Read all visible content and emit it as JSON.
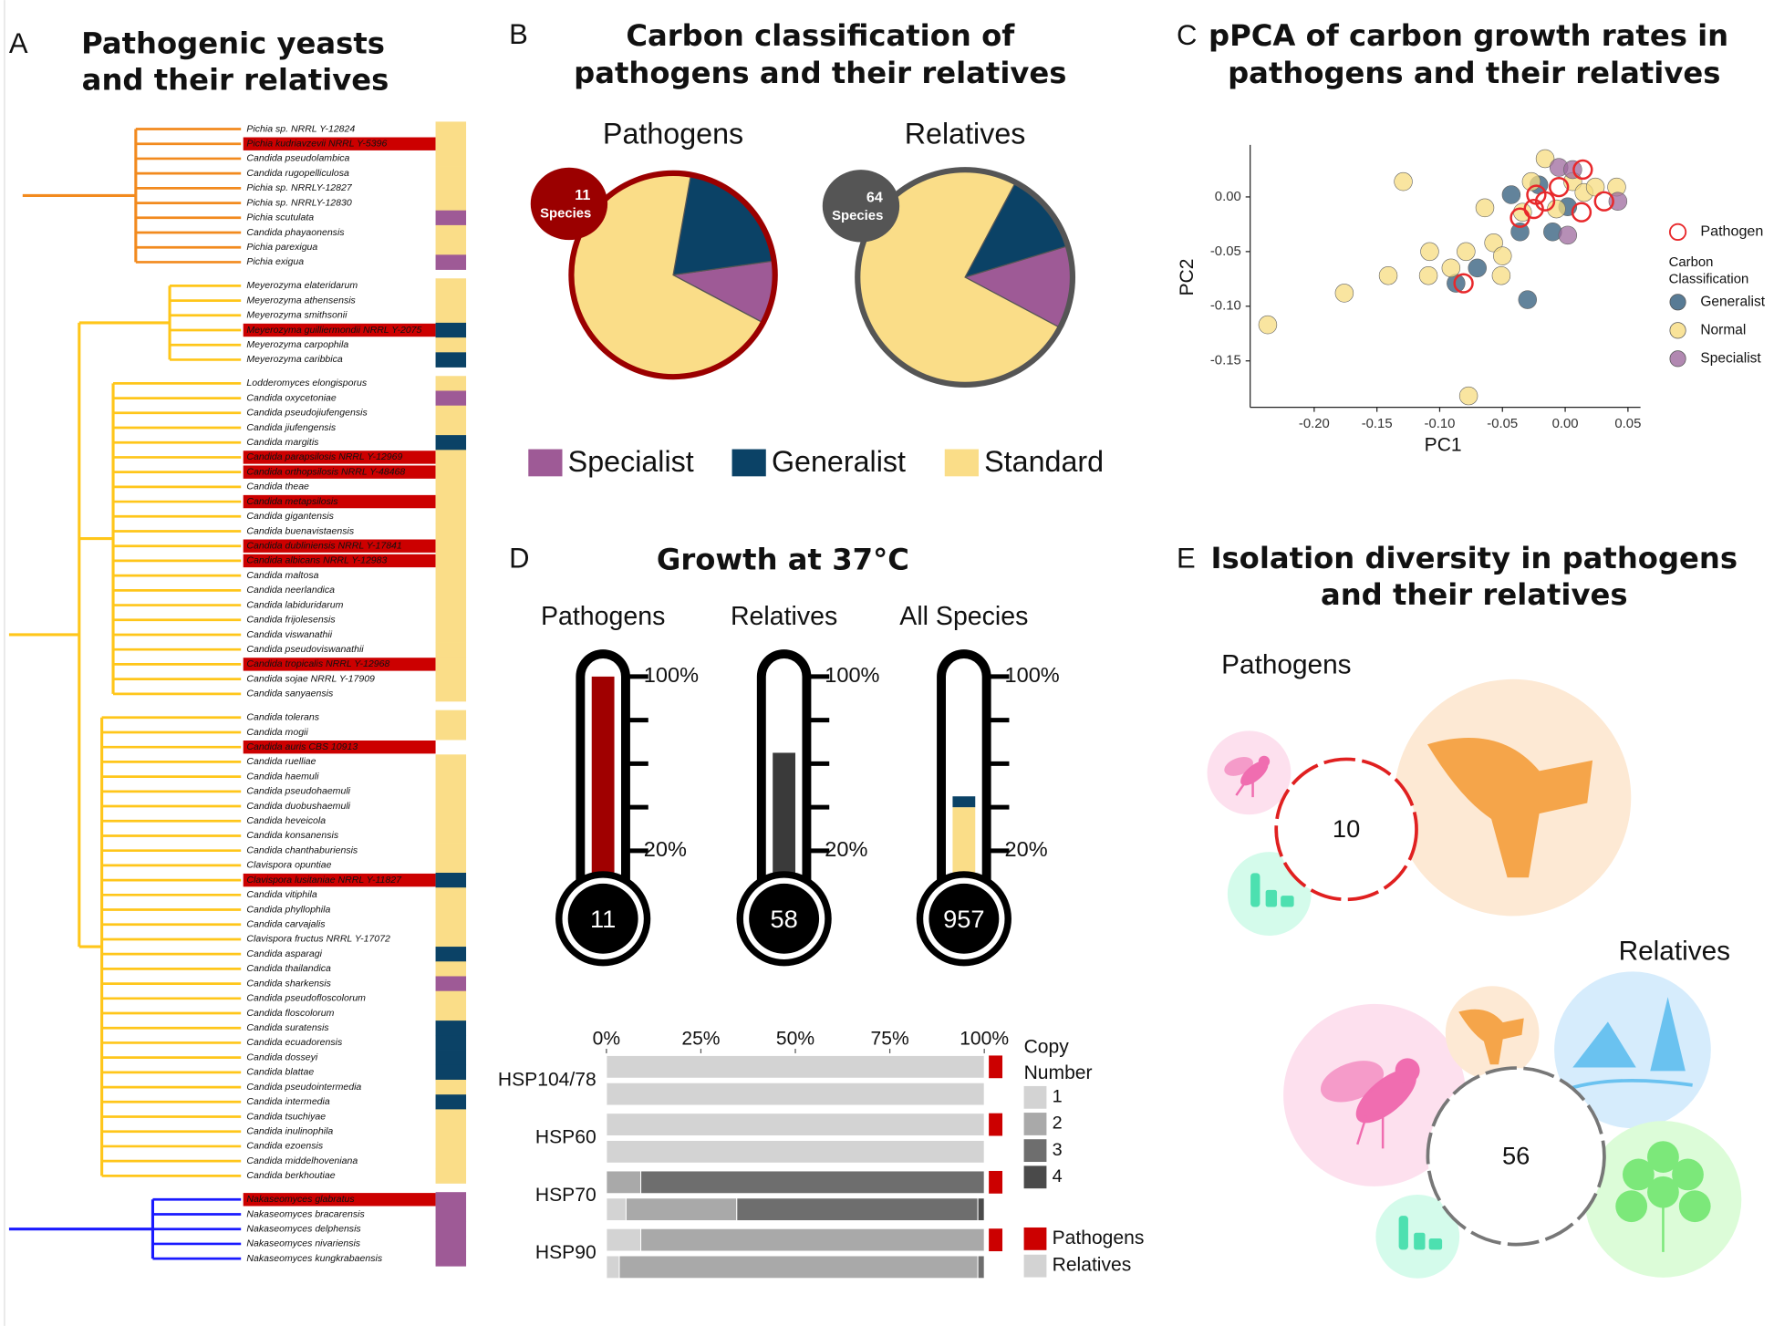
{
  "panels": {
    "a": "A",
    "b": "B",
    "c": "C",
    "d": "D",
    "e": "E"
  },
  "chart_data": [
    {
      "type": "tree",
      "title": [
        "Pathogenic yeasts",
        "and their relatives"
      ],
      "pathogen_color": "#cc0000",
      "carbon_colors": {
        "Specialist": "#9e5a96",
        "Generalist": "#0b4266",
        "Standard": "#fadd88"
      },
      "clades": [
        {
          "color": "#f28a1e",
          "species": [
            {
              "name": "Pichia sp. NRRL Y-12824",
              "carbon": "Standard"
            },
            {
              "name": "Pichia kudriavzevii NRRL Y-5396",
              "pathogen": true,
              "carbon": "Standard"
            },
            {
              "name": "Candida pseudolambica",
              "carbon": "Standard"
            },
            {
              "name": "Candida rugopelliculosa",
              "carbon": "Standard"
            },
            {
              "name": "Pichia sp. NRRLY-12827",
              "carbon": "Standard"
            },
            {
              "name": "Pichia sp. NRRLY-12830",
              "carbon": "Standard"
            },
            {
              "name": "Pichia scutulata",
              "carbon": "Specialist"
            },
            {
              "name": "Candida phayaonensis",
              "carbon": "Standard"
            },
            {
              "name": "Pichia parexigua",
              "carbon": "Standard"
            },
            {
              "name": "Pichia exigua",
              "carbon": "Specialist"
            }
          ]
        },
        {
          "color": "#ffc61a",
          "species": [
            {
              "name": "Meyerozyma elateridarum",
              "carbon": "Standard"
            },
            {
              "name": "Meyerozyma athensensis",
              "carbon": "Standard"
            },
            {
              "name": "Meyerozyma smithsonii",
              "carbon": "Standard"
            },
            {
              "name": "Meyerozyma guilliermondii NRRL Y-2075",
              "pathogen": true,
              "carbon": "Generalist"
            },
            {
              "name": "Meyerozyma carpophila",
              "carbon": "Standard"
            },
            {
              "name": "Meyerozyma caribbica",
              "carbon": "Generalist"
            }
          ]
        },
        {
          "color": "#ffc61a",
          "species": [
            {
              "name": "Lodderomyces elongisporus",
              "carbon": "Standard"
            },
            {
              "name": "Candida oxycetoniae",
              "carbon": "Specialist"
            },
            {
              "name": "Candida pseudojiufengensis",
              "carbon": "Standard"
            },
            {
              "name": "Candida jiufengensis",
              "carbon": "Standard"
            },
            {
              "name": "Candida margitis",
              "carbon": "Generalist"
            },
            {
              "name": "Candida parapsilosis NRRL Y-12969",
              "pathogen": true,
              "carbon": "Standard"
            },
            {
              "name": "Candida orthopsilosis NRRL Y-48468",
              "pathogen": true,
              "carbon": "Standard"
            },
            {
              "name": "Candida theae",
              "carbon": "Standard"
            },
            {
              "name": "Candida metapsilosis",
              "pathogen": true,
              "carbon": "Standard"
            },
            {
              "name": "Candida gigantensis",
              "carbon": "Standard"
            },
            {
              "name": "Candida buenavistaensis",
              "carbon": "Standard"
            },
            {
              "name": "Candida dubliniensis NRRL Y-17841",
              "pathogen": true,
              "carbon": "Standard"
            },
            {
              "name": "Candida albicans NRRL Y-12983",
              "pathogen": true,
              "carbon": "Standard"
            },
            {
              "name": "Candida maltosa",
              "carbon": "Standard"
            },
            {
              "name": "Candida neerlandica",
              "carbon": "Standard"
            },
            {
              "name": "Candida labiduridarum",
              "carbon": "Standard"
            },
            {
              "name": "Candida frijolesensis",
              "carbon": "Standard"
            },
            {
              "name": "Candida viswanathii",
              "carbon": "Standard"
            },
            {
              "name": "Candida pseudoviswanathii",
              "carbon": "Standard"
            },
            {
              "name": "Candida tropicalis NRRL Y-12968",
              "pathogen": true,
              "carbon": "Standard"
            },
            {
              "name": "Candida sojae NRRL Y-17909",
              "carbon": "Standard"
            },
            {
              "name": "Candida sanyaensis",
              "carbon": "Standard"
            }
          ]
        },
        {
          "color": "#ffc61a",
          "species": [
            {
              "name": "Candida tolerans",
              "carbon": "Standard"
            },
            {
              "name": "Candida mogii",
              "carbon": "Standard"
            },
            {
              "name": "Candida auris CBS 10913",
              "pathogen": true,
              "carbon": null
            },
            {
              "name": "Candida ruelliae",
              "carbon": "Standard"
            },
            {
              "name": "Candida haemuli",
              "carbon": "Standard"
            },
            {
              "name": "Candida pseudohaemuli",
              "carbon": "Standard"
            },
            {
              "name": "Candida duobushaemuli",
              "carbon": "Standard"
            },
            {
              "name": "Candida heveicola",
              "carbon": "Standard"
            },
            {
              "name": "Candida konsanensis",
              "carbon": "Standard"
            },
            {
              "name": "Candida chanthaburiensis",
              "carbon": "Standard"
            },
            {
              "name": "Clavispora opuntiae",
              "carbon": "Standard"
            },
            {
              "name": "Clavispora lusitaniae NRRL Y-11827",
              "pathogen": true,
              "carbon": "Generalist"
            },
            {
              "name": "Candida vitiphila",
              "carbon": "Standard"
            },
            {
              "name": "Candida phyllophila",
              "carbon": "Standard"
            },
            {
              "name": "Candida carvajalis",
              "carbon": "Standard"
            },
            {
              "name": "Clavispora fructus NRRL Y-17072",
              "carbon": "Standard"
            },
            {
              "name": "Candida asparagi",
              "carbon": "Generalist"
            },
            {
              "name": "Candida thailandica",
              "carbon": "Standard"
            },
            {
              "name": "Candida sharkensis",
              "carbon": "Specialist"
            },
            {
              "name": "Candida pseudofloscolorum",
              "carbon": "Standard"
            },
            {
              "name": "Candida floscolorum",
              "carbon": "Standard"
            },
            {
              "name": "Candida suratensis",
              "carbon": "Generalist"
            },
            {
              "name": "Candida ecuadorensis",
              "carbon": "Generalist"
            },
            {
              "name": "Candida dosseyi",
              "carbon": "Generalist"
            },
            {
              "name": "Candida blattae",
              "carbon": "Generalist"
            },
            {
              "name": "Candida pseudointermedia",
              "carbon": "Standard"
            },
            {
              "name": "Candida intermedia",
              "carbon": "Generalist"
            },
            {
              "name": "Candida tsuchiyae",
              "carbon": "Standard"
            },
            {
              "name": "Candida inulinophila",
              "carbon": "Standard"
            },
            {
              "name": "Candida ezoensis",
              "carbon": "Standard"
            },
            {
              "name": "Candida middelhoveniana",
              "carbon": "Standard"
            },
            {
              "name": "Candida berkhoutiae",
              "carbon": "Standard"
            }
          ]
        },
        {
          "color": "#1a1aff",
          "species": [
            {
              "name": "Nakaseomyces glabratus",
              "pathogen": true,
              "carbon": "Specialist"
            },
            {
              "name": "Nakaseomyces bracarensis",
              "carbon": "Specialist"
            },
            {
              "name": "Nakaseomyces delphensis",
              "carbon": "Specialist"
            },
            {
              "name": "Nakaseomyces nivariensis",
              "carbon": "Specialist"
            },
            {
              "name": "Nakaseomyces kungkrabaensis",
              "carbon": "Specialist"
            }
          ]
        }
      ]
    },
    {
      "type": "pie",
      "title": [
        "Carbon classification of",
        "pathogens and their relatives"
      ],
      "categories": [
        "Specialist",
        "Generalist",
        "Standard"
      ],
      "colors": [
        "#9e5a96",
        "#0b4266",
        "#fadd88"
      ],
      "series": [
        {
          "name": "Pathogens",
          "count": 11,
          "count_label": "Species",
          "border": "#9b0000",
          "values": [
            1,
            2,
            7
          ]
        },
        {
          "name": "Relatives",
          "count": 64,
          "count_label": "Species",
          "border": "#555555",
          "values": [
            8,
            8,
            48
          ]
        }
      ]
    },
    {
      "type": "scatter",
      "title": [
        "pPCA of carbon growth rates in",
        "pathogens and their relatives"
      ],
      "x_label": "PC1",
      "y_label": "PC2",
      "legend_title": [
        "Carbon",
        "Classification"
      ],
      "xlim": [
        -0.251,
        0.06
      ],
      "ylim": [
        -0.1925,
        0.0476
      ],
      "xticks": [
        {
          "value": -0.2,
          "label": "-0.20"
        },
        {
          "value": -0.15,
          "label": "-0.15"
        },
        {
          "value": -0.1,
          "label": "-0.10"
        },
        {
          "value": -0.05,
          "label": "-0.05"
        },
        {
          "value": 0,
          "label": "0.00"
        },
        {
          "value": 0.05,
          "label": "0.05"
        }
      ],
      "yticks": [
        {
          "value": 0,
          "label": "0.00"
        },
        {
          "value": -0.05,
          "label": "-0.05"
        },
        {
          "value": -0.1,
          "label": "-0.10"
        },
        {
          "value": -0.15,
          "label": "-0.15"
        }
      ],
      "series": [
        {
          "name": "Pathogen",
          "color": "#e8282b",
          "outline": true,
          "x": [
            -0.081,
            -0.036,
            -0.025,
            -0.016,
            -0.005,
            0.014,
            0.031,
            0.013,
            -0.023
          ],
          "values": [
            -0.079,
            -0.019,
            -0.011,
            -0.004,
            0.009,
            0.025,
            -0.004,
            -0.014,
            0.002
          ]
        },
        {
          "name": "Generalist",
          "color": "#2e5a7a",
          "x": [
            -0.087,
            -0.07,
            -0.043,
            -0.03,
            -0.036,
            -0.021,
            0.002,
            -0.01
          ],
          "values": [
            -0.079,
            -0.065,
            0.002,
            -0.094,
            -0.032,
            0.011,
            -0.009,
            -0.032
          ]
        },
        {
          "name": "Normal",
          "color": "#f7dc80",
          "x": [
            -0.237,
            -0.176,
            -0.129,
            -0.077,
            -0.141,
            -0.108,
            -0.109,
            -0.091,
            -0.079,
            -0.064,
            -0.057,
            -0.051,
            -0.05,
            -0.034,
            -0.016,
            0.006,
            0.015,
            0.024,
            0.041,
            -0.007,
            -0.027
          ],
          "values": [
            -0.117,
            -0.088,
            0.014,
            -0.182,
            -0.072,
            -0.05,
            -0.072,
            -0.065,
            -0.05,
            -0.01,
            -0.042,
            -0.072,
            -0.054,
            -0.014,
            0.035,
            0.014,
            0.004,
            0.009,
            0.009,
            -0.011,
            0.014
          ]
        },
        {
          "name": "Specialist",
          "color": "#9e6a9e",
          "x": [
            -0.005,
            0.006,
            0.002,
            0.042
          ],
          "values": [
            0.027,
            0.025,
            -0.035,
            -0.004
          ]
        }
      ]
    },
    {
      "type": "thermometer",
      "title": "Growth at 37°C",
      "ylim": [
        0,
        100
      ],
      "yticks": [
        {
          "value": 100,
          "label": "100%"
        },
        {
          "value": 80
        },
        {
          "value": 60
        },
        {
          "value": 40
        },
        {
          "value": 20,
          "label": "20%"
        }
      ],
      "series": [
        {
          "name": "Pathogens",
          "count": 11,
          "values": [
            100
          ],
          "colors": [
            "#a00000"
          ]
        },
        {
          "name": "Relatives",
          "count": 58,
          "values": [
            65
          ],
          "colors": [
            "#3a3a3a"
          ]
        },
        {
          "name": "All Species",
          "count": 957,
          "values": [
            10,
            30,
            5
          ],
          "colors": [
            "#9e5a96",
            "#fadd88",
            "#0b4266"
          ]
        }
      ]
    },
    {
      "type": "bar",
      "orientation": "horizontal",
      "stacked": true,
      "legend_title": [
        "Copy",
        "Number"
      ],
      "categories": [
        "HSP104/78",
        "HSP60",
        "HSP70",
        "HSP90"
      ],
      "groups": [
        {
          "name": "Pathogens",
          "color": "#cc0000"
        },
        {
          "name": "Relatives",
          "color": "#d3d3d3"
        }
      ],
      "xlim": [
        0,
        100
      ],
      "xticks": [
        {
          "value": 0,
          "label": "0%"
        },
        {
          "value": 25,
          "label": "25%"
        },
        {
          "value": 50,
          "label": "50%"
        },
        {
          "value": 75,
          "label": "75%"
        },
        {
          "value": 100,
          "label": "100%"
        }
      ],
      "series": [
        {
          "name": "1",
          "color": "#d3d3d3",
          "values": [
            [
              100,
              100
            ],
            [
              100,
              100
            ],
            [
              0,
              5.2
            ],
            [
              9.1,
              3.4
            ]
          ]
        },
        {
          "name": "2",
          "color": "#a9a9a9",
          "values": [
            [
              0,
              0
            ],
            [
              0,
              0
            ],
            [
              9.1,
              29.3
            ],
            [
              90.9,
              94.9
            ]
          ]
        },
        {
          "name": "3",
          "color": "#6e6e6e",
          "values": [
            [
              0,
              0
            ],
            [
              0,
              0
            ],
            [
              90.9,
              63.8
            ],
            [
              0,
              1.7
            ]
          ]
        },
        {
          "name": "4",
          "color": "#4a4a4a",
          "values": [
            [
              0,
              0
            ],
            [
              0,
              0
            ],
            [
              0,
              1.7
            ],
            [
              0,
              0
            ]
          ]
        }
      ]
    },
    {
      "type": "bubble",
      "title": [
        "Isolation diversity in pathogens",
        "and their relatives"
      ],
      "groups": [
        {
          "name": "Pathogens",
          "count": 10,
          "ring": "#e02020",
          "bubbles": [
            {
              "icon": "insect",
              "color": "#fde0ee",
              "icon_color": "#f06db0",
              "size": 1
            },
            {
              "icon": "animal",
              "color": "#fde9d4",
              "icon_color": "#f5a54a",
              "size": 8
            },
            {
              "icon": "food",
              "color": "#d4fbeb",
              "icon_color": "#4de0b0",
              "size": 1
            }
          ]
        },
        {
          "name": "Relatives",
          "count": 56,
          "ring": "#777777",
          "bubbles": [
            {
              "icon": "insect",
              "color": "#fde0ee",
              "icon_color": "#f06db0",
              "size": 19
            },
            {
              "icon": "animal",
              "color": "#fde9d4",
              "icon_color": "#f5a54a",
              "size": 5
            },
            {
              "icon": "water",
              "color": "#d6ecfc",
              "icon_color": "#6ac2f0",
              "size": 14
            },
            {
              "icon": "plant",
              "color": "#dcfcd8",
              "icon_color": "#7ce87a",
              "size": 14
            },
            {
              "icon": "food",
              "color": "#d4fbeb",
              "icon_color": "#4de0b0",
              "size": 4
            }
          ]
        }
      ]
    }
  ]
}
